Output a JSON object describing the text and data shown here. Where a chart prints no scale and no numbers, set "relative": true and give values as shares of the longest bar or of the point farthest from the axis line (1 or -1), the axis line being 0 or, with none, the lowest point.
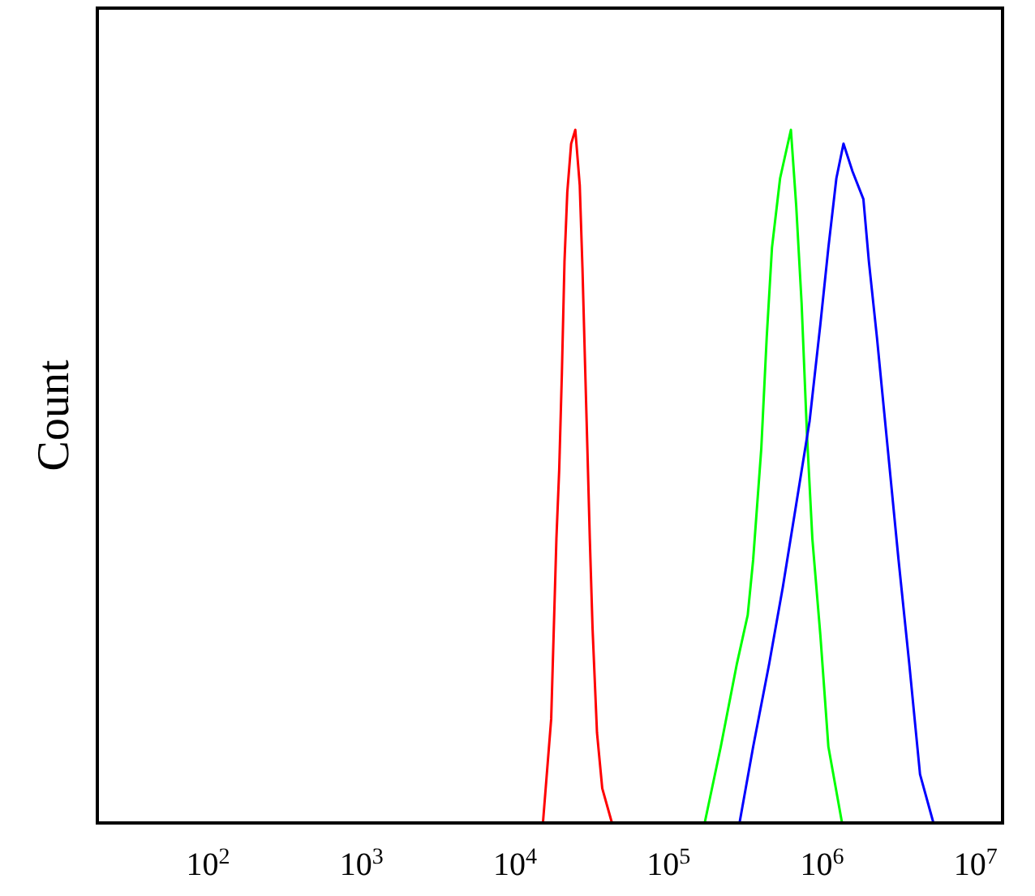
{
  "chart_data": {
    "type": "line",
    "ylabel": "Count",
    "relative": true,
    "log": "x",
    "grid": false,
    "marker": "none",
    "line_style": "solid",
    "xlim": [
      19,
      15000000
    ],
    "xticks": [
      {
        "value": 100,
        "label": "10$^{2}$"
      },
      {
        "value": 1000,
        "label": "10$^{3}$"
      },
      {
        "value": 10000,
        "label": "10$^{4}$"
      },
      {
        "value": 100000,
        "label": "10$^{5}$"
      },
      {
        "value": 1000000,
        "label": "10$^{6}$"
      },
      {
        "value": 10000000,
        "label": "10$^{7}$"
      }
    ],
    "series": [
      {
        "color": "#ff0000",
        "x": [
          15200,
          17200,
          18600,
          19400,
          20200,
          21000,
          21900,
          23200,
          24700,
          26400,
          27500,
          28600,
          29600,
          30700,
          32000,
          34200,
          37000,
          42800
        ],
        "values": [
          0,
          0.15,
          0.41,
          0.51,
          0.65,
          0.81,
          0.91,
          0.98,
          1,
          0.92,
          0.8,
          0.66,
          0.54,
          0.41,
          0.28,
          0.13,
          0.05,
          0
        ]
      },
      {
        "color": "#00ff00",
        "x": [
          172000,
          219000,
          279000,
          328000,
          356000,
          402000,
          436000,
          472000,
          533000,
          627000,
          679000,
          736000,
          798000,
          865000,
          976000,
          1100000,
          1350000
        ],
        "values": [
          0,
          0.11,
          0.23,
          0.3,
          0.38,
          0.54,
          0.7,
          0.83,
          0.93,
          1,
          0.89,
          0.75,
          0.56,
          0.41,
          0.27,
          0.11,
          0
        ]
      },
      {
        "color": "#0000ff",
        "x": [
          290000,
          356000,
          453000,
          555000,
          679000,
          830000,
          976000,
          1100000,
          1240000,
          1380000,
          1580000,
          1860000,
          2020000,
          2280000,
          2680000,
          3150000,
          3700000,
          4350000,
          5320000
        ],
        "values": [
          0,
          0.11,
          0.23,
          0.34,
          0.46,
          0.58,
          0.72,
          0.83,
          0.93,
          0.98,
          0.94,
          0.9,
          0.81,
          0.7,
          0.54,
          0.38,
          0.23,
          0.07,
          0
        ]
      }
    ]
  }
}
